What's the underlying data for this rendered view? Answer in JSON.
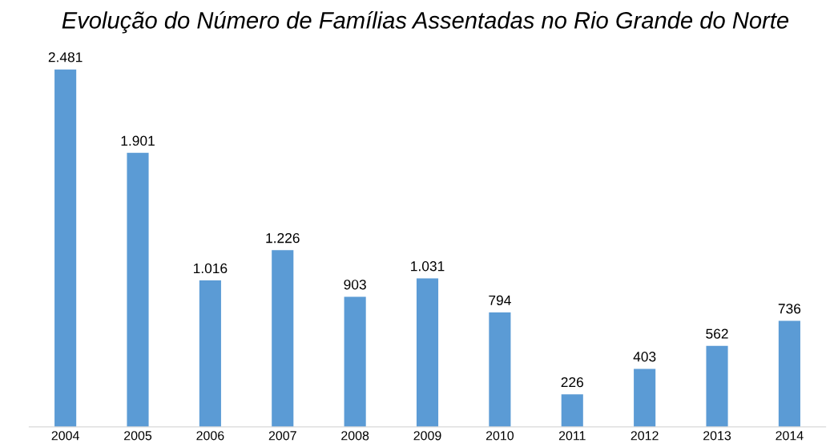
{
  "chart_data": {
    "type": "bar",
    "title": "Evolução do Número de Famílias Assentadas no Rio Grande do Norte",
    "categories": [
      "2004",
      "2005",
      "2006",
      "2007",
      "2008",
      "2009",
      "2010",
      "2011",
      "2012",
      "2013",
      "2014"
    ],
    "values": [
      2481,
      1901,
      1016,
      1226,
      903,
      1031,
      794,
      226,
      403,
      562,
      736
    ],
    "value_labels": [
      "2.481",
      "1.901",
      "1.016",
      "1.226",
      "903",
      "1.031",
      "794",
      "226",
      "403",
      "562",
      "736"
    ],
    "color": "#5b9bd5",
    "grid": false,
    "legend": false,
    "tick_labels": "x"
  }
}
